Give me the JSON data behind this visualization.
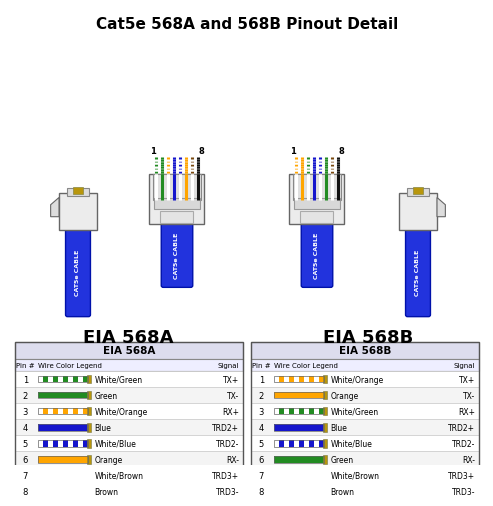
{
  "title": "Cat5e 568A and 568B Pinout Detail",
  "title_fontsize": 11,
  "label_568A": "EIA 568A",
  "label_568B": "EIA 568B",
  "cable_color": "#2233DD",
  "background_color": "#FFFFFF",
  "568A": [
    {
      "pin": "1",
      "color_segs": [
        "white",
        "green"
      ],
      "label": "White/Green",
      "signal": "TX+"
    },
    {
      "pin": "2",
      "color_segs": [
        "green",
        "green"
      ],
      "label": "Green",
      "signal": "TX-"
    },
    {
      "pin": "3",
      "color_segs": [
        "white",
        "orange"
      ],
      "label": "White/Orange",
      "signal": "RX+"
    },
    {
      "pin": "4",
      "color_segs": [
        "blue",
        "blue"
      ],
      "label": "Blue",
      "signal": "TRD2+"
    },
    {
      "pin": "5",
      "color_segs": [
        "white",
        "blue"
      ],
      "label": "White/Blue",
      "signal": "TRD2-"
    },
    {
      "pin": "6",
      "color_segs": [
        "orange",
        "orange"
      ],
      "label": "Orange",
      "signal": "RX-"
    },
    {
      "pin": "7",
      "color_segs": [
        "white",
        "brown"
      ],
      "label": "White/Brown",
      "signal": "TRD3+"
    },
    {
      "pin": "8",
      "color_segs": [
        "brown",
        "brown"
      ],
      "label": "Brown",
      "signal": "TRD3-"
    }
  ],
  "568B": [
    {
      "pin": "1",
      "color_segs": [
        "white",
        "orange"
      ],
      "label": "White/Orange",
      "signal": "TX+"
    },
    {
      "pin": "2",
      "color_segs": [
        "orange",
        "orange"
      ],
      "label": "Orange",
      "signal": "TX-"
    },
    {
      "pin": "3",
      "color_segs": [
        "white",
        "green"
      ],
      "label": "White/Green",
      "signal": "RX+"
    },
    {
      "pin": "4",
      "color_segs": [
        "blue",
        "blue"
      ],
      "label": "Blue",
      "signal": "TRD2+"
    },
    {
      "pin": "5",
      "color_segs": [
        "white",
        "blue"
      ],
      "label": "White/Blue",
      "signal": "TRD2-"
    },
    {
      "pin": "6",
      "color_segs": [
        "green",
        "green"
      ],
      "label": "Green",
      "signal": "RX-"
    },
    {
      "pin": "7",
      "color_segs": [
        "white",
        "brown"
      ],
      "label": "White/Brown",
      "signal": "TRD3+"
    },
    {
      "pin": "8",
      "color_segs": [
        "brown",
        "brown"
      ],
      "label": "Brown",
      "signal": "TRD3-"
    }
  ],
  "wire_colors": {
    "white": "#FFFFFF",
    "green": "#228B22",
    "orange": "#FFA500",
    "blue": "#1515CC",
    "brown": "#7B4A10"
  },
  "connector_wire_colors_568A": [
    [
      "#FFFFFF",
      "#228B22"
    ],
    [
      "#228B22",
      "#228B22"
    ],
    [
      "#FFFFFF",
      "#FFA500"
    ],
    [
      "#1515CC",
      "#1515CC"
    ],
    [
      "#FFFFFF",
      "#1515CC"
    ],
    [
      "#FFA500",
      "#FFA500"
    ],
    [
      "#FFFFFF",
      "#7B4A10"
    ],
    [
      "#111111",
      "#111111"
    ]
  ],
  "connector_wire_colors_568B": [
    [
      "#FFFFFF",
      "#FFA500"
    ],
    [
      "#FFA500",
      "#FFA500"
    ],
    [
      "#FFFFFF",
      "#228B22"
    ],
    [
      "#1515CC",
      "#1515CC"
    ],
    [
      "#FFFFFF",
      "#1515CC"
    ],
    [
      "#228B22",
      "#228B22"
    ],
    [
      "#FFFFFF",
      "#7B4A10"
    ],
    [
      "#111111",
      "#111111"
    ]
  ]
}
